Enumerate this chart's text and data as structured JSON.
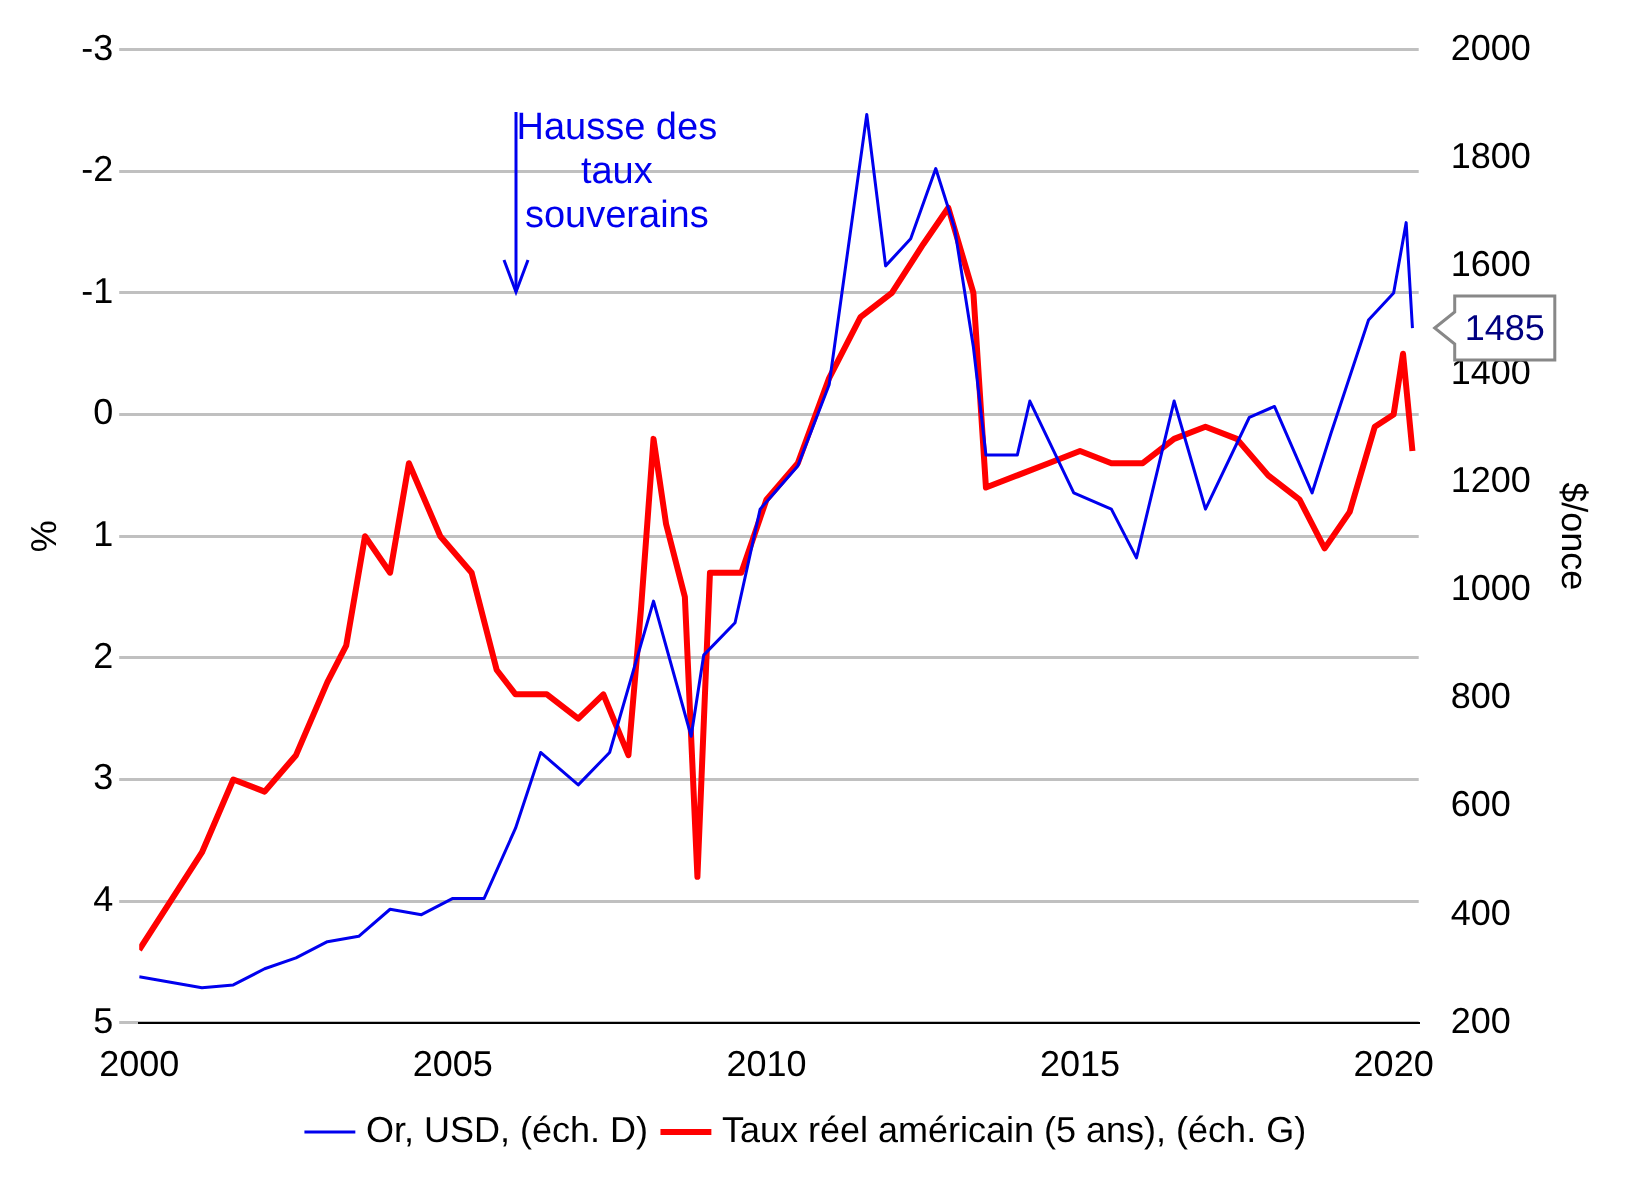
{
  "chart_data": {
    "type": "line",
    "ylabel": "%",
    "y2label": "$/once",
    "xlim": [
      2000,
      2020.4
    ],
    "xticks": [
      2000,
      2005,
      2010,
      2015,
      2020
    ],
    "ylim": [
      5,
      -3
    ],
    "yticks": [
      -3,
      -2,
      -1,
      0,
      1,
      2,
      3,
      4,
      5
    ],
    "y2lim": [
      200,
      2000
    ],
    "y2ticks": [
      200,
      400,
      600,
      800,
      1000,
      1200,
      1400,
      1600,
      1800,
      2000
    ],
    "grid": "y",
    "legend": "bottom",
    "marker": "none",
    "line_style": "solid",
    "annotations": [
      "Hausse des taux souverains"
    ],
    "series": [
      {
        "name": "Or, USD, (éch. D)",
        "color": "#0000ee",
        "axis": "y2",
        "x": [
          2000,
          2000.5,
          2001,
          2001.5,
          2002,
          2002.5,
          2003,
          2003.5,
          2004,
          2004.5,
          2005,
          2005.5,
          2006,
          2006.4,
          2007,
          2007.5,
          2008,
          2008.2,
          2008.8,
          2009,
          2009.5,
          2009.9,
          2010.5,
          2011,
          2011.6,
          2011.9,
          2012.3,
          2012.7,
          2013,
          2013.3,
          2013.5,
          2014,
          2014.2,
          2014.9,
          2015.5,
          2015.9,
          2016.5,
          2017,
          2017.7,
          2018.1,
          2018.7,
          2019,
          2019.6,
          2020,
          2020.2,
          2020.3
        ],
        "values": [
          285,
          275,
          265,
          270,
          300,
          320,
          350,
          360,
          410,
          400,
          430,
          430,
          560,
          700,
          640,
          700,
          900,
          980,
          730,
          880,
          940,
          1150,
          1230,
          1380,
          1880,
          1600,
          1650,
          1780,
          1670,
          1450,
          1250,
          1250,
          1350,
          1180,
          1150,
          1060,
          1350,
          1150,
          1320,
          1340,
          1180,
          1290,
          1500,
          1550,
          1680,
          1485
        ],
        "value_labels": [
          null,
          null,
          null,
          null,
          null,
          null,
          null,
          null,
          null,
          null,
          null,
          null,
          null,
          null,
          null,
          null,
          null,
          null,
          null,
          null,
          null,
          null,
          null,
          null,
          null,
          null,
          null,
          null,
          null,
          null,
          null,
          null,
          null,
          null,
          null,
          null,
          null,
          null,
          null,
          null,
          null,
          null,
          null,
          null,
          null,
          "1485"
        ]
      },
      {
        "name": "Taux réel américain (5 ans), (éch. G)",
        "color": "#ff0000",
        "axis": "y",
        "x": [
          2000,
          2000.5,
          2001,
          2001.5,
          2002,
          2002.5,
          2003,
          2003.3,
          2003.6,
          2004,
          2004.3,
          2004.8,
          2005.3,
          2005.7,
          2006,
          2006.5,
          2007,
          2007.4,
          2007.8,
          2008,
          2008.2,
          2008.4,
          2008.7,
          2008.9,
          2009.1,
          2009.6,
          2010,
          2010.5,
          2011,
          2011.5,
          2012,
          2012.5,
          2012.9,
          2013.3,
          2013.5,
          2014,
          2014.5,
          2015,
          2015.5,
          2016,
          2016.5,
          2017,
          2017.5,
          2018,
          2018.5,
          2018.9,
          2019.3,
          2019.7,
          2020,
          2020.15,
          2020.3
        ],
        "values": [
          4.4,
          4.0,
          3.6,
          3.0,
          3.1,
          2.8,
          2.2,
          1.9,
          1.0,
          1.3,
          0.4,
          1.0,
          1.3,
          2.1,
          2.3,
          2.3,
          2.5,
          2.3,
          2.8,
          1.6,
          0.2,
          0.9,
          1.5,
          3.8,
          1.3,
          1.3,
          0.7,
          0.4,
          -0.3,
          -0.8,
          -1.0,
          -1.4,
          -1.7,
          -1.0,
          0.6,
          0.5,
          0.4,
          0.3,
          0.4,
          0.4,
          0.2,
          0.1,
          0.2,
          0.5,
          0.7,
          1.1,
          0.8,
          0.1,
          0.0,
          -0.5,
          0.3
        ]
      }
    ]
  }
}
